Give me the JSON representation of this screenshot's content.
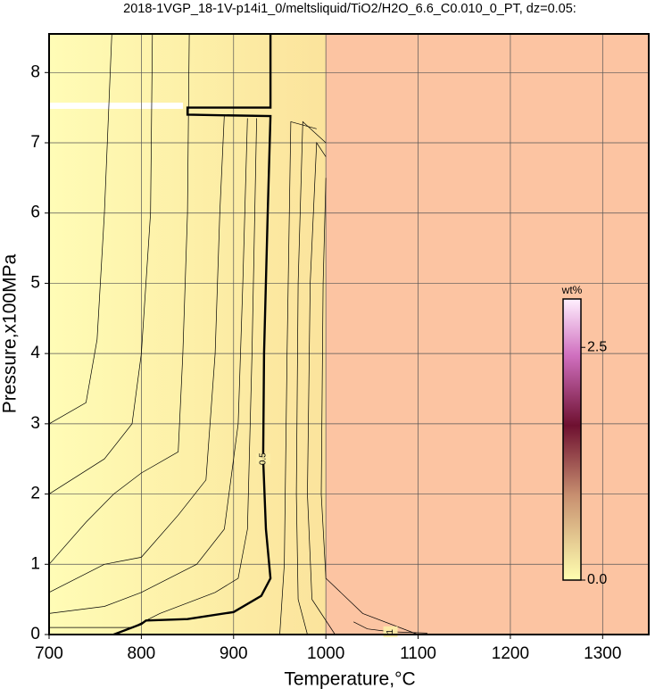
{
  "chart_data": {
    "type": "contour",
    "title": "2018-1VGP_18-1V-p14i1_0/meltsliquid/TiO2/H2O_6.6_C0.010_0_PT, dz=0.05:",
    "xlabel": "Temperature,°C",
    "ylabel": "Pressure,x100MPa",
    "xlim": [
      700,
      1350
    ],
    "ylim": [
      0,
      8.55
    ],
    "xticks": [
      700,
      800,
      900,
      1000,
      1100,
      1200,
      1300
    ],
    "yticks": [
      0,
      1,
      2,
      3,
      4,
      5,
      6,
      7,
      8
    ],
    "grid": true,
    "contours": [
      {
        "x": [
          700,
          740,
          752,
          760,
          768
        ],
        "y": [
          3.0,
          3.3,
          4.2,
          6,
          8.55
        ]
      },
      {
        "x": [
          700,
          760,
          790,
          800,
          810,
          812
        ],
        "y": [
          2.0,
          2.5,
          3.0,
          4,
          6,
          8.55
        ]
      },
      {
        "x": [
          700,
          740,
          770,
          800,
          840,
          845,
          850,
          852
        ],
        "y": [
          1.0,
          1.6,
          2.0,
          2.3,
          2.6,
          4,
          6,
          8.55
        ]
      },
      {
        "x": [
          700,
          760,
          800,
          840,
          870,
          880,
          885,
          890
        ],
        "y": [
          0.6,
          1.0,
          1.1,
          1.7,
          2.2,
          4,
          6,
          7.4
        ]
      },
      {
        "x": [
          700,
          760,
          800,
          860,
          890,
          905,
          910,
          915
        ],
        "y": [
          0.3,
          0.4,
          0.6,
          1.0,
          1.5,
          3,
          5,
          7.35
        ]
      },
      {
        "x": [
          700,
          790,
          820,
          880,
          905,
          915,
          920,
          925
        ],
        "y": [
          0.1,
          0.1,
          0.3,
          0.6,
          0.8,
          1.5,
          4,
          7.35
        ]
      },
      {
        "x": [
          950,
          955,
          958,
          962,
          990
        ],
        "y": [
          0,
          1,
          4,
          7.3,
          7.2
        ]
      },
      {
        "x": [
          980,
          970,
          968,
          970,
          975,
          1000
        ],
        "y": [
          0,
          0.5,
          2,
          5,
          7.3,
          7.0
        ]
      },
      {
        "x": [
          1010,
          985,
          980,
          983,
          990,
          1000
        ],
        "y": [
          0,
          0.5,
          2,
          5,
          7.0,
          6.8
        ]
      },
      {
        "x": [
          1100,
          1040,
          1000,
          995,
          997,
          1000
        ],
        "y": [
          0,
          0.3,
          0.8,
          2,
          5,
          6.5
        ]
      },
      {
        "x": [
          1030,
          1045,
          1070,
          1110
        ],
        "y": [
          0.18,
          0.08,
          0.04,
          0.02
        ],
        "label": "1"
      },
      {
        "x": [
          770,
          800,
          805,
          850,
          900,
          930,
          940,
          935,
          932,
          933,
          937,
          940,
          850,
          850,
          940,
          940
        ],
        "y": [
          0,
          0.15,
          0.2,
          0.22,
          0.32,
          0.55,
          0.8,
          1.5,
          2.5,
          4,
          6,
          7.38,
          7.4,
          7.5,
          7.5,
          8.55
        ],
        "label": "0.5",
        "bold": true
      }
    ],
    "colorbar": {
      "label": "wt%",
      "lim": [
        0,
        3.02
      ],
      "ticks": [
        {
          "value": 0,
          "label": "0.0"
        },
        2.5
      ]
    }
  }
}
